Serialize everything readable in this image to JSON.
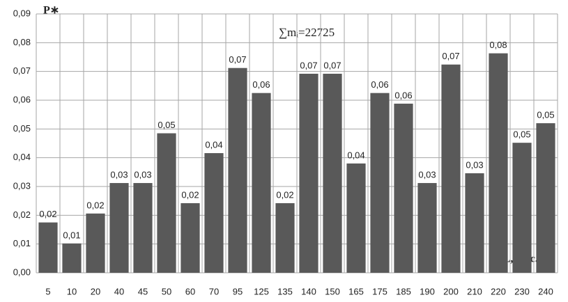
{
  "chart_data": {
    "type": "bar",
    "y_label": "P∗",
    "x_label": "L, тыс.км.",
    "annotation": "∑mᵢ=22725",
    "categories": [
      "5",
      "10",
      "20",
      "40",
      "45",
      "50",
      "60",
      "70",
      "95",
      "125",
      "135",
      "140",
      "150",
      "165",
      "175",
      "185",
      "190",
      "200",
      "210",
      "220",
      "230",
      "240"
    ],
    "values": [
      0.0175,
      0.0102,
      0.0206,
      0.0312,
      0.0312,
      0.0485,
      0.0242,
      0.0416,
      0.0712,
      0.0625,
      0.0242,
      0.0692,
      0.0692,
      0.038,
      0.0625,
      0.0588,
      0.0312,
      0.0724,
      0.0346,
      0.0763,
      0.0452,
      0.052
    ],
    "value_labels": [
      "0,02",
      "0,01",
      "0,02",
      "0,03",
      "0,03",
      "0,05",
      "0,02",
      "0,04",
      "0,07",
      "0,06",
      "0,02",
      "0,07",
      "0,07",
      "0,04",
      "0,06",
      "0,06",
      "0,03",
      "0,07",
      "0,03",
      "0,08",
      "0,05",
      "0,05"
    ],
    "color": "#595959",
    "ylim": [
      0,
      0.09
    ],
    "yticks": [
      {
        "value": 0,
        "label": "0,00"
      },
      {
        "value": 0.01,
        "label": "0,01"
      },
      {
        "value": 0.02,
        "label": "0,02"
      },
      {
        "value": 0.03,
        "label": "0,03"
      },
      {
        "value": 0.04,
        "label": "0,04"
      },
      {
        "value": 0.05,
        "label": "0,05"
      },
      {
        "value": 0.06,
        "label": "0,06"
      },
      {
        "value": 0.07,
        "label": "0,07"
      },
      {
        "value": 0.08,
        "label": "0,08"
      },
      {
        "value": 0.09,
        "label": "0,09"
      }
    ],
    "grid": true
  }
}
